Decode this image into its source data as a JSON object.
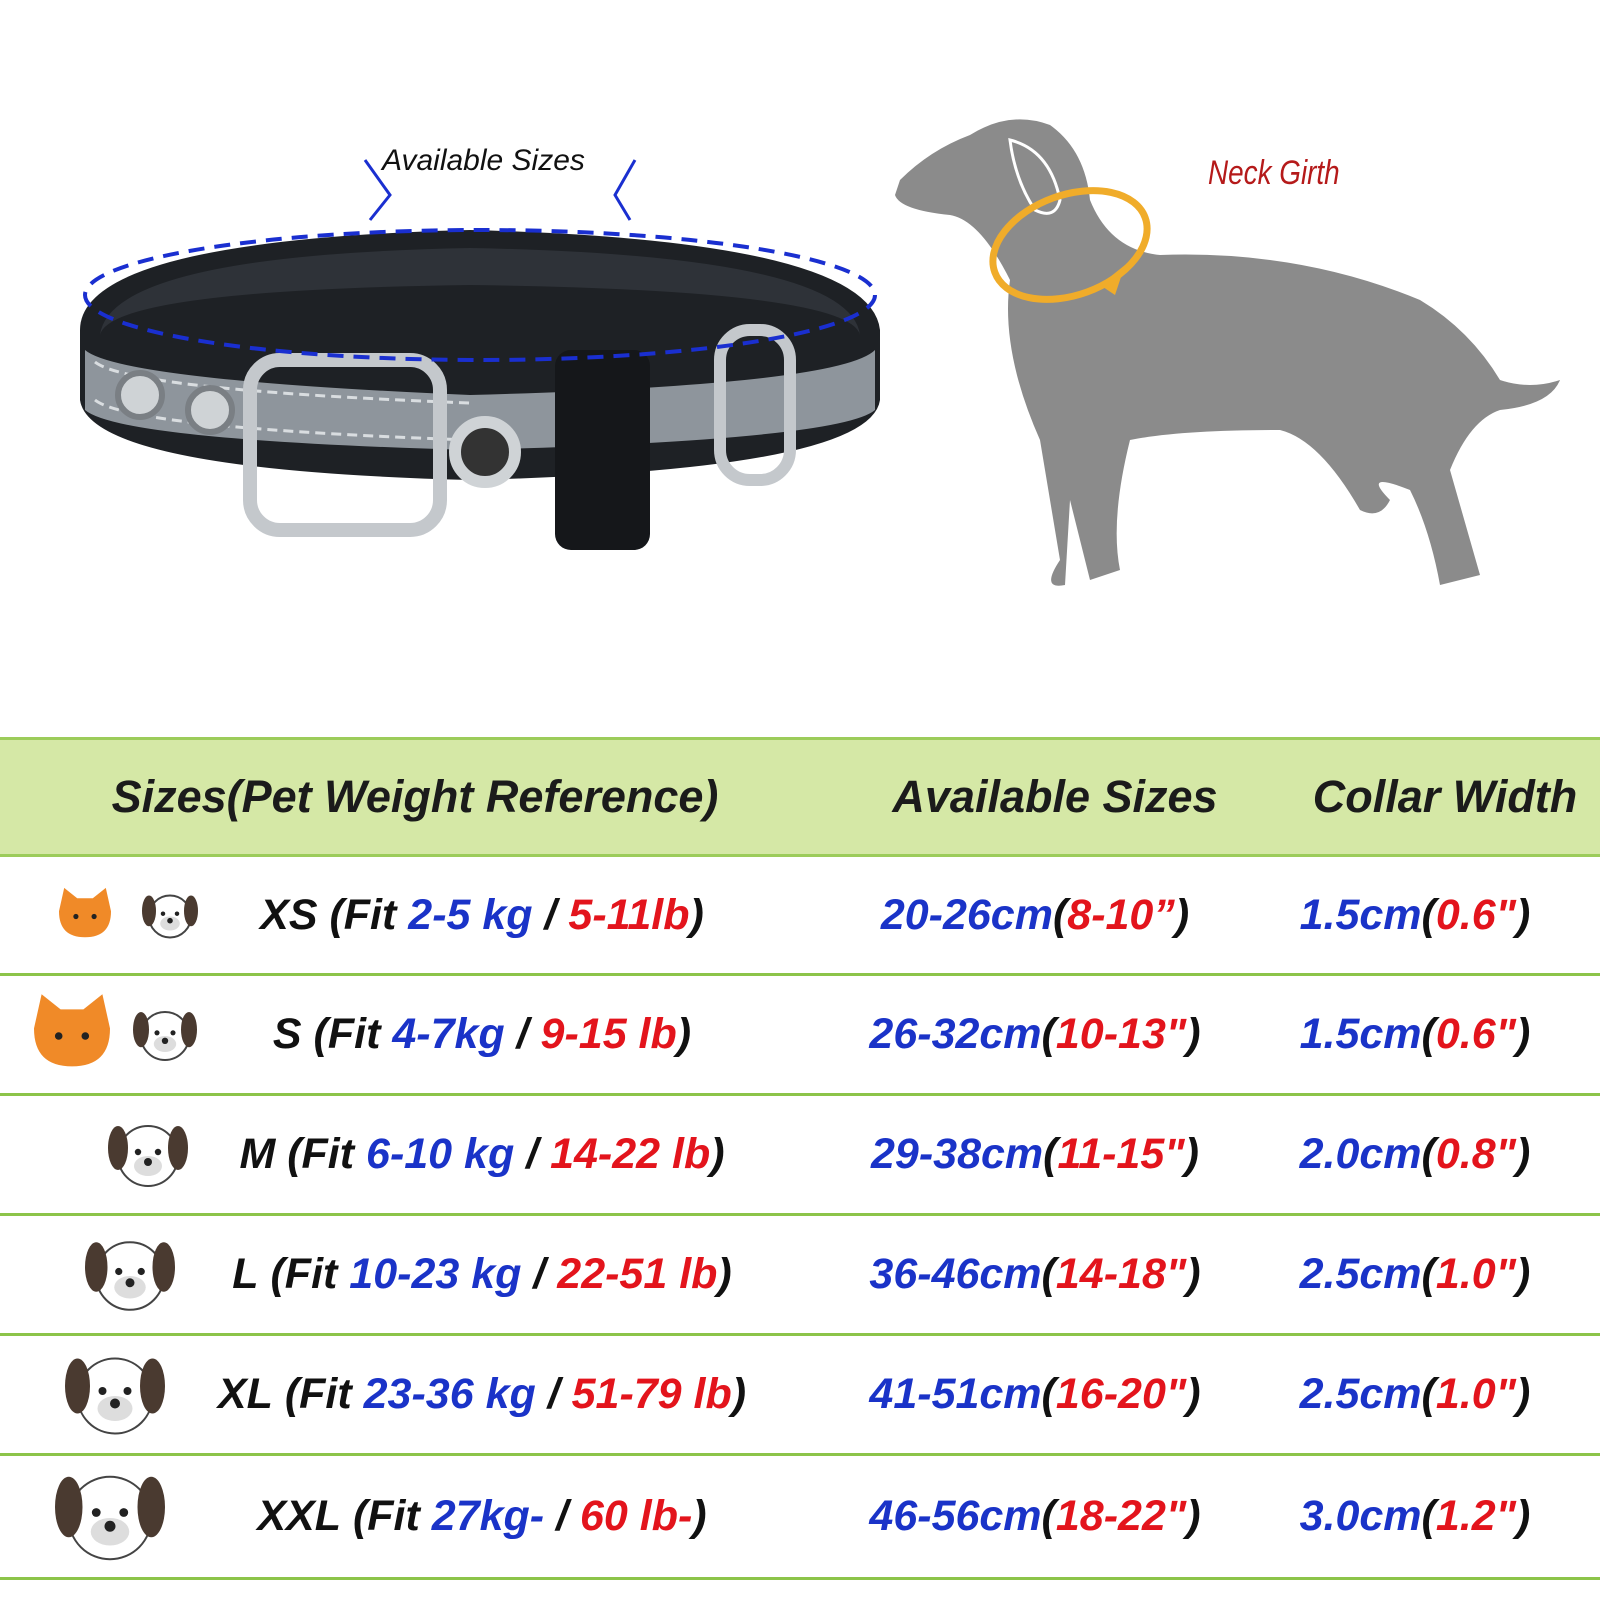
{
  "illustration": {
    "collar_label": "Available Sizes",
    "neck_label": "Neck Girth"
  },
  "table": {
    "headers": [
      "Sizes(Pet Weight Reference)",
      "Available Sizes",
      "Collar Width"
    ],
    "fit_open": "(Fit",
    "separator": "/",
    "close": ")",
    "paren_open": "(",
    "paren_close": ")",
    "rows": [
      {
        "size": "XS",
        "kg": "2-5 kg",
        "lb": "5-11lb",
        "cm": "20-26cm",
        "inch": "8-10”",
        "width_cm": "1.5cm",
        "width_in": "0.6\""
      },
      {
        "size": "S",
        "kg": "4-7kg",
        "lb": "9-15 lb",
        "cm": "26-32cm",
        "inch": "10-13\"",
        "width_cm": "1.5cm",
        "width_in": "0.6\""
      },
      {
        "size": "M",
        "kg": "6-10 kg",
        "lb": "14-22 lb",
        "cm": "29-38cm",
        "inch": "11-15\"",
        "width_cm": "2.0cm",
        "width_in": "0.8\""
      },
      {
        "size": "L",
        "kg": "10-23 kg",
        "lb": "22-51 lb",
        "cm": "36-46cm",
        "inch": "14-18\"",
        "width_cm": "2.5cm",
        "width_in": "1.0\""
      },
      {
        "size": "XL",
        "kg": "23-36 kg",
        "lb": "51-79 lb",
        "cm": "41-51cm",
        "inch": "16-20\"",
        "width_cm": "2.5cm",
        "width_in": "1.0\""
      },
      {
        "size": "XXL",
        "kg": "27kg-",
        "lb": "60 lb-",
        "cm": "46-56cm",
        "inch": "18-22\"",
        "width_cm": "3.0cm",
        "width_in": "1.2\""
      }
    ]
  }
}
